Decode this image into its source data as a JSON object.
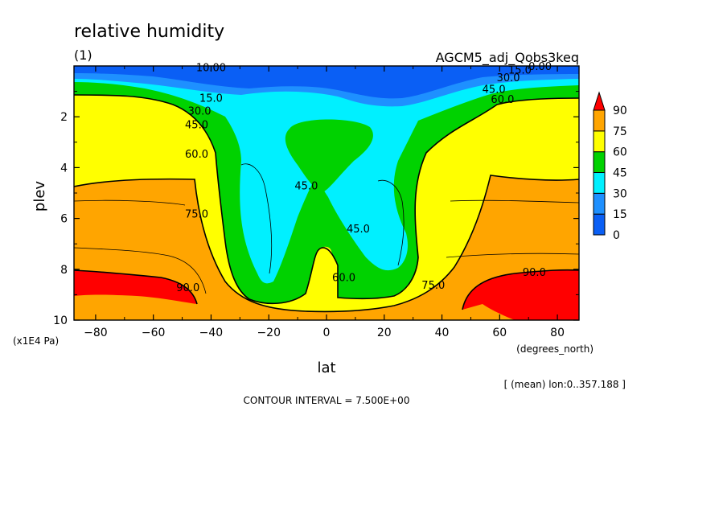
{
  "chart_data": {
    "type": "heatmap",
    "title": "relative humidity",
    "subtitle_left": "(1)",
    "subtitle_right": "AGCM5_adj_Qobs3keq",
    "xlabel": "lat",
    "xunit": "(degrees_north)",
    "ylabel": "plev",
    "yunit": "(x1E4 Pa)",
    "xlim": [
      -87.5,
      87.5
    ],
    "ylim": [
      0,
      10
    ],
    "y_inverted": true,
    "x_ticks": [
      -80,
      -60,
      -40,
      -20,
      0,
      20,
      40,
      60,
      80
    ],
    "x_tick_labels": [
      "−80",
      "−60",
      "−40",
      "−20",
      "0",
      "20",
      "40",
      "60",
      "80"
    ],
    "y_ticks": [
      2,
      4,
      6,
      8,
      10
    ],
    "y_tick_labels": [
      "2",
      "4",
      "6",
      "8",
      "10"
    ],
    "contour_interval_text": "CONTOUR INTERVAL = 7.500E+00",
    "mean_note": "[ (mean) lon:0..357.188 ]",
    "legend": {
      "levels": [
        0,
        15,
        30,
        45,
        60,
        75,
        90
      ],
      "labels": [
        "0",
        "15",
        "30",
        "45",
        "60",
        "75",
        "90"
      ],
      "colors": [
        "#0a5ff5",
        "#1e90ff",
        "#00f0ff",
        "#00d200",
        "#ffff00",
        "#ffa500",
        "#ff0000"
      ],
      "placement": "right"
    },
    "fill_colors": {
      "below_15": "#0a5ff5",
      "15_30": "#1e90ff",
      "30_45": "#00f0ff",
      "45_60": "#00d200",
      "60_75": "#ffff00",
      "75_90": "#ffa500",
      "above_90": "#ff0000"
    },
    "contour_labels": [
      {
        "text": "10.00",
        "lat": -40,
        "plev": 0.05
      },
      {
        "text": "15.0",
        "lat": -40,
        "plev": 1.25
      },
      {
        "text": "30.0",
        "lat": -44,
        "plev": 1.75
      },
      {
        "text": "45.0",
        "lat": -45,
        "plev": 2.3
      },
      {
        "text": "60.0",
        "lat": -45,
        "plev": 3.45
      },
      {
        "text": "75.0",
        "lat": -45,
        "plev": 5.8
      },
      {
        "text": "90.0",
        "lat": -48,
        "plev": 8.7
      },
      {
        "text": "45.0",
        "lat": -7,
        "plev": 4.7
      },
      {
        "text": "45.0",
        "lat": 11,
        "plev": 6.4
      },
      {
        "text": "60.0",
        "lat": 6,
        "plev": 8.3
      },
      {
        "text": "75.0",
        "lat": 37,
        "plev": 8.6
      },
      {
        "text": "90.0",
        "lat": 72,
        "plev": 8.1
      },
      {
        "text": "60.0",
        "lat": 61,
        "plev": 1.3
      },
      {
        "text": "45.0",
        "lat": 58,
        "plev": 0.9
      },
      {
        "text": "30.0",
        "lat": 63,
        "plev": 0.45
      },
      {
        "text": "15.0",
        "lat": 67,
        "plev": 0.15
      },
      {
        "text": "0.00",
        "lat": 74,
        "plev": 0.0
      }
    ]
  }
}
